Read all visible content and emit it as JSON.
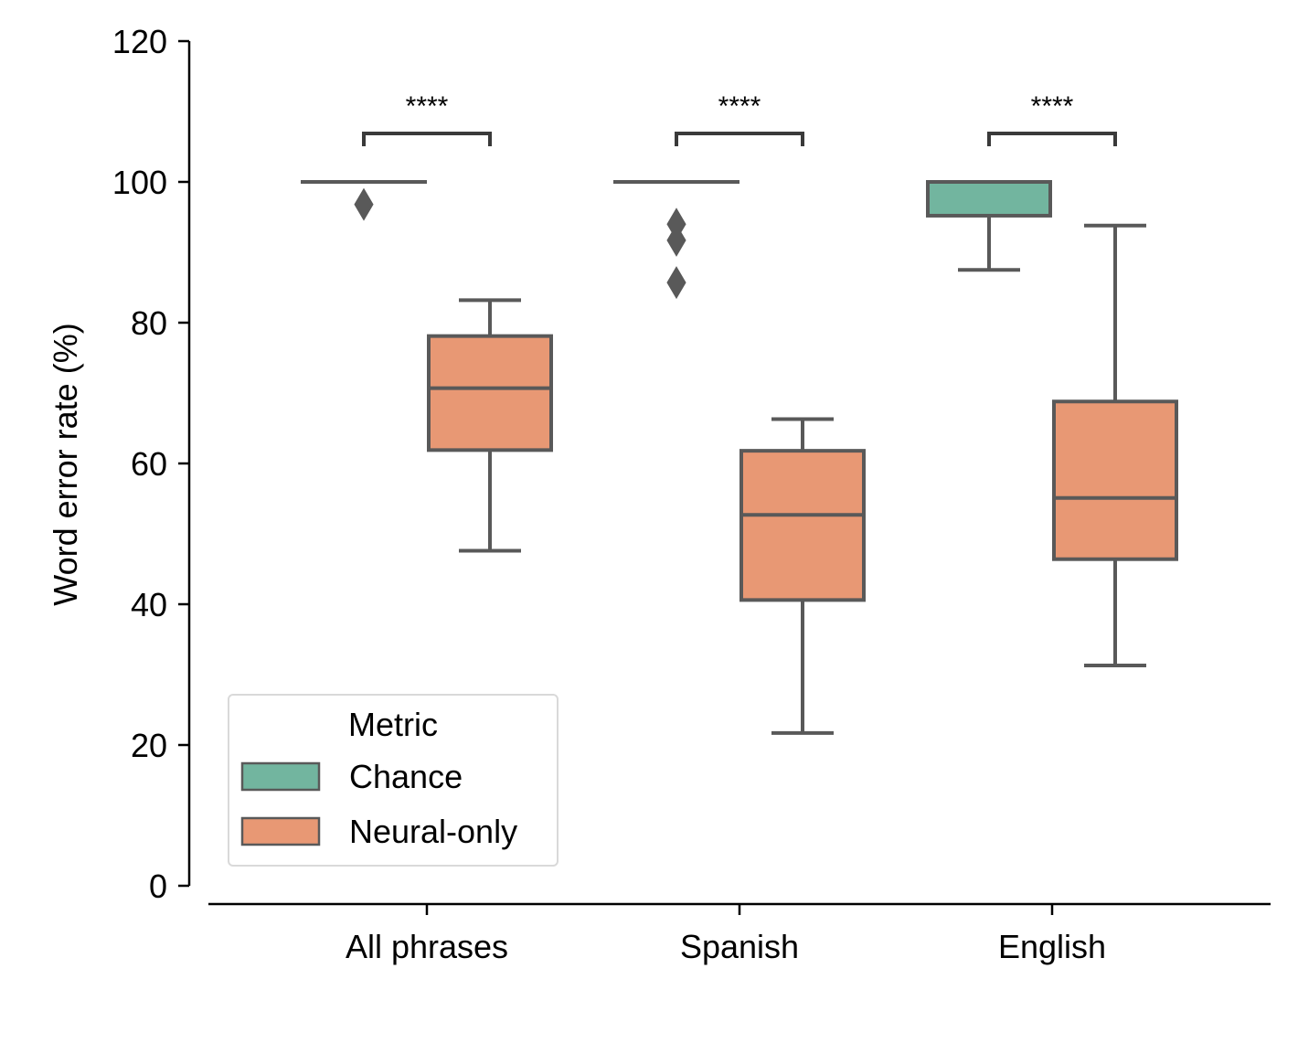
{
  "chart_data": {
    "type": "box",
    "title": "",
    "xlabel": "",
    "ylabel": "Word error rate (%)",
    "ylim": [
      0,
      120
    ],
    "yticks": [
      0,
      20,
      40,
      60,
      80,
      100,
      120
    ],
    "grid": false,
    "legend": {
      "title": "Metric",
      "position": "lower-left",
      "entries": [
        "Chance",
        "Neural-only"
      ]
    },
    "categories": [
      "All phrases",
      "Spanish",
      "English"
    ],
    "series": [
      {
        "name": "Chance",
        "color": "#72b59f",
        "boxes": [
          {
            "whisker_low": 100,
            "q1": 100,
            "median": 100,
            "q3": 100,
            "whisker_high": 100,
            "outliers": [
              96.8
            ]
          },
          {
            "whisker_low": 100,
            "q1": 100,
            "median": 100,
            "q3": 100,
            "whisker_high": 100,
            "outliers": [
              94,
              91.7,
              85.7
            ]
          },
          {
            "whisker_low": 87.5,
            "q1": 95.2,
            "median": 100,
            "q3": 100,
            "whisker_high": 100,
            "outliers": []
          }
        ]
      },
      {
        "name": "Neural-only",
        "color": "#e89874",
        "boxes": [
          {
            "whisker_low": 47.6,
            "q1": 61.9,
            "median": 70.7,
            "q3": 78.1,
            "whisker_high": 83.2,
            "outliers": []
          },
          {
            "whisker_low": 21.7,
            "q1": 40.6,
            "median": 52.7,
            "q3": 61.8,
            "whisker_high": 66.3,
            "outliers": []
          },
          {
            "whisker_low": 31.3,
            "q1": 46.4,
            "median": 55.1,
            "q3": 68.8,
            "whisker_high": 93.8,
            "outliers": []
          }
        ]
      }
    ],
    "annotations": [
      {
        "category": "All phrases",
        "text": "****"
      },
      {
        "category": "Spanish",
        "text": "****"
      },
      {
        "category": "English",
        "text": "****"
      }
    ],
    "edge_color": "#595959"
  }
}
